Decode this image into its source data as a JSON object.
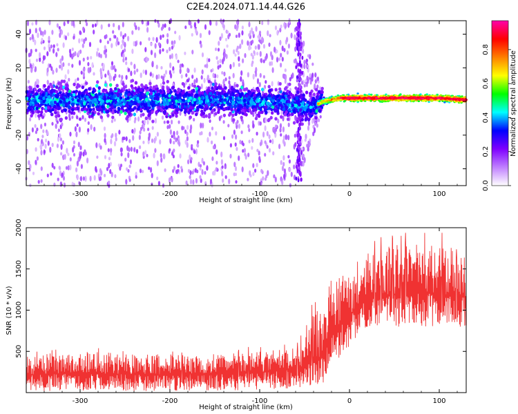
{
  "title": "C2E4.2024.071.14.44.G26",
  "chart_data": [
    {
      "type": "heatmap",
      "xlabel": "Height of straight line (km)",
      "ylabel": "Frequency (Hz)",
      "xlim": [
        -360,
        130
      ],
      "ylim": [
        -50,
        48
      ],
      "x_ticks": [
        "-300",
        "-200",
        "-100",
        "0",
        "100"
      ],
      "y_ticks": [
        "-40",
        "-20",
        "0",
        "20",
        "40"
      ],
      "colorbar": {
        "label": "Normalized spectral amplitude",
        "range": [
          0.0,
          0.97
        ],
        "ticks": [
          "0.0",
          "0.2",
          "0.4",
          "0.6",
          "0.8"
        ],
        "colormap": [
          "#ffffff",
          "#c080ff",
          "#7f00ff",
          "#0000ff",
          "#00ffff",
          "#00ff00",
          "#ffff00",
          "#ff8000",
          "#ff0000",
          "#ff00aa"
        ]
      },
      "signal_track": [
        {
          "x": -350,
          "y": 1
        },
        {
          "x": -300,
          "y": 0
        },
        {
          "x": -250,
          "y": 1
        },
        {
          "x": -200,
          "y": 0
        },
        {
          "x": -150,
          "y": 1
        },
        {
          "x": -100,
          "y": 0
        },
        {
          "x": -60,
          "y": -2
        },
        {
          "x": -45,
          "y": -4
        },
        {
          "x": -30,
          "y": 0
        },
        {
          "x": -10,
          "y": 2
        },
        {
          "x": 0,
          "y": 2
        },
        {
          "x": 50,
          "y": 2
        },
        {
          "x": 100,
          "y": 2
        },
        {
          "x": 130,
          "y": 1
        }
      ]
    },
    {
      "type": "line",
      "xlabel": "Height of straight line (km)",
      "ylabel": "SNR (10 * v/v)",
      "xlim": [
        -360,
        130
      ],
      "ylim": [
        0,
        2000
      ],
      "x_ticks": [
        "-300",
        "-200",
        "-100",
        "0",
        "100"
      ],
      "y_ticks": [
        "500",
        "1000",
        "1500",
        "2000"
      ],
      "series": [
        {
          "color": "#f03232",
          "envelope": [
            {
              "x": -360,
              "low": 20,
              "mean": 220,
              "high": 450
            },
            {
              "x": -300,
              "low": 20,
              "mean": 230,
              "high": 500
            },
            {
              "x": -200,
              "low": 20,
              "mean": 220,
              "high": 450
            },
            {
              "x": -100,
              "low": 30,
              "mean": 250,
              "high": 500
            },
            {
              "x": -60,
              "low": 50,
              "mean": 280,
              "high": 550
            },
            {
              "x": -45,
              "low": 60,
              "mean": 350,
              "high": 900
            },
            {
              "x": -30,
              "low": 100,
              "mean": 450,
              "high": 1100
            },
            {
              "x": -20,
              "low": 300,
              "mean": 700,
              "high": 1400
            },
            {
              "x": -5,
              "low": 500,
              "mean": 900,
              "high": 1450
            },
            {
              "x": 10,
              "low": 700,
              "mean": 1050,
              "high": 1500
            },
            {
              "x": 30,
              "low": 800,
              "mean": 1180,
              "high": 1750
            },
            {
              "x": 60,
              "low": 800,
              "mean": 1200,
              "high": 1800
            },
            {
              "x": 100,
              "low": 800,
              "mean": 1200,
              "high": 1800
            },
            {
              "x": 130,
              "low": 800,
              "mean": 1150,
              "high": 1700
            }
          ]
        }
      ]
    }
  ]
}
